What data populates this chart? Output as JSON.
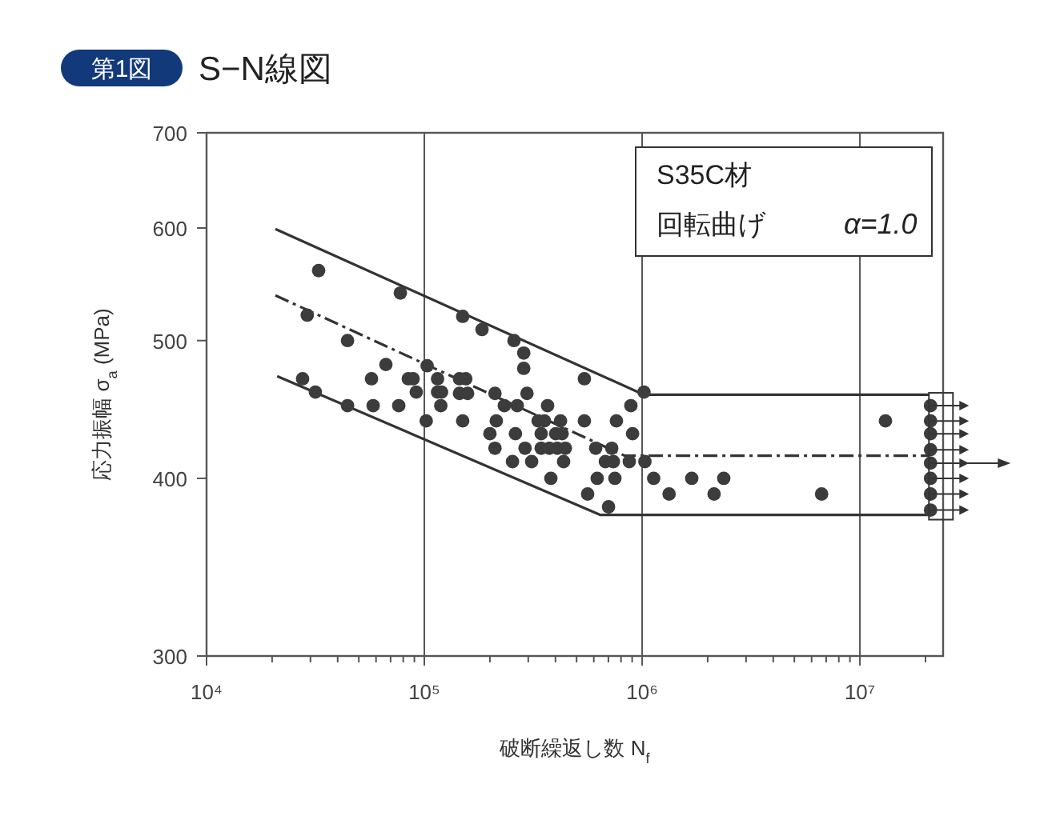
{
  "chart_data": {
    "type": "scatter",
    "title": "S−N線図",
    "annotations": [
      "第1図",
      "S35C材",
      "回転曲げ",
      "α=1.0"
    ],
    "xlabel": "破断繰返し数 N$_{f}$",
    "ylabel": "応力振幅 σ$_{a}$ (MPa)",
    "log": "xy",
    "grid": "x",
    "xlim": [
      10000,
      24100000
    ],
    "xticks": [
      {
        "value": 10000,
        "label": "10⁴"
      },
      {
        "value": 20000,
        "label": null
      },
      {
        "value": 30000,
        "label": null
      },
      {
        "value": 40000,
        "label": null
      },
      {
        "value": 50000,
        "label": null
      },
      {
        "value": 60000,
        "label": null
      },
      {
        "value": 70000,
        "label": null
      },
      {
        "value": 80000,
        "label": null
      },
      {
        "value": 90000,
        "label": null
      },
      {
        "value": 100000,
        "label": "10⁵"
      },
      {
        "value": 200000,
        "label": null
      },
      {
        "value": 300000,
        "label": null
      },
      {
        "value": 400000,
        "label": null
      },
      {
        "value": 500000,
        "label": null
      },
      {
        "value": 600000,
        "label": null
      },
      {
        "value": 700000,
        "label": null
      },
      {
        "value": 800000,
        "label": null
      },
      {
        "value": 900000,
        "label": null
      },
      {
        "value": 1000000,
        "label": "10⁶"
      },
      {
        "value": 2000000,
        "label": null
      },
      {
        "value": 3000000,
        "label": null
      },
      {
        "value": 4000000,
        "label": null
      },
      {
        "value": 5000000,
        "label": null
      },
      {
        "value": 6000000,
        "label": null
      },
      {
        "value": 7000000,
        "label": null
      },
      {
        "value": 8000000,
        "label": null
      },
      {
        "value": 9000000,
        "label": null
      },
      {
        "value": 10000000,
        "label": "10⁷"
      },
      {
        "value": 20000000,
        "label": null
      }
    ],
    "ylim": [
      300,
      700
    ],
    "yticks": [
      300,
      400,
      500,
      600,
      700
    ],
    "series": [
      {
        "marker": "circle",
        "color": "#3c3c3c",
        "x": [
          32700,
          77600,
          29000,
          44400,
          66600,
          103000,
          27600,
          57200,
          84400,
          88800,
          115000,
          31600,
          91800,
          115000,
          120000,
          44400,
          58200,
          76300,
          119000,
          102000,
          150000,
          184000,
          258000,
          286000,
          286000,
          543000,
          145000,
          155000,
          145000,
          158000,
          211000,
          296000,
          233000,
          267000,
          368000,
          1020000,
          888000,
          150000,
          214000,
          333000,
          356000,
          422000,
          543000,
          762000,
          200000,
          262000,
          344000,
          401000,
          429000,
          904000,
          211000,
          290000,
          344000,
          375000,
          408000,
          444000,
          612000,
          725000,
          254000,
          311000,
          436000,
          678000,
          738000,
          873000,
          1030000,
          381000,
          622000,
          750000,
          1130000,
          562000,
          701000,
          1330000,
          1690000,
          2140000,
          2370000,
          6670000,
          13100000
        ],
        "values": [
          560,
          540,
          521,
          500,
          481,
          480,
          470,
          470,
          470,
          470,
          470,
          460,
          460,
          460,
          460,
          450,
          450,
          450,
          450,
          439,
          520,
          509,
          500,
          490,
          478,
          470,
          470,
          470,
          459,
          459,
          459,
          459,
          450,
          450,
          450,
          460,
          450,
          439,
          439,
          439,
          439,
          439,
          439,
          439,
          430,
          430,
          430,
          430,
          430,
          430,
          420,
          420,
          420,
          420,
          420,
          420,
          420,
          420,
          411,
          411,
          411,
          411,
          411,
          411,
          411,
          400,
          400,
          400,
          400,
          390,
          382,
          390,
          400,
          390,
          400,
          390,
          439
        ]
      },
      {
        "marker": "circle",
        "color": "#3c3c3c",
        "x": [
          21100000,
          21100000,
          21100000,
          21100000,
          21100000,
          21100000,
          21100000,
          21100000
        ],
        "values": [
          450,
          439,
          430,
          419,
          410,
          400,
          390,
          380
        ]
      },
      {
        "type": "line",
        "color": "#333333",
        "line_style": "solid",
        "x": [
          20700,
          1020000,
          20700000
        ],
        "values": [
          599,
          458,
          458
        ]
      },
      {
        "type": "line",
        "color": "#333333",
        "line_style": "dashed",
        "x": [
          20700,
          830000,
          20700000
        ],
        "values": [
          538,
          415,
          415
        ]
      },
      {
        "type": "line",
        "color": "#333333",
        "line_style": "solid",
        "x": [
          21100,
          644000,
          20700000
        ],
        "values": [
          472,
          377,
          377
        ]
      }
    ]
  }
}
